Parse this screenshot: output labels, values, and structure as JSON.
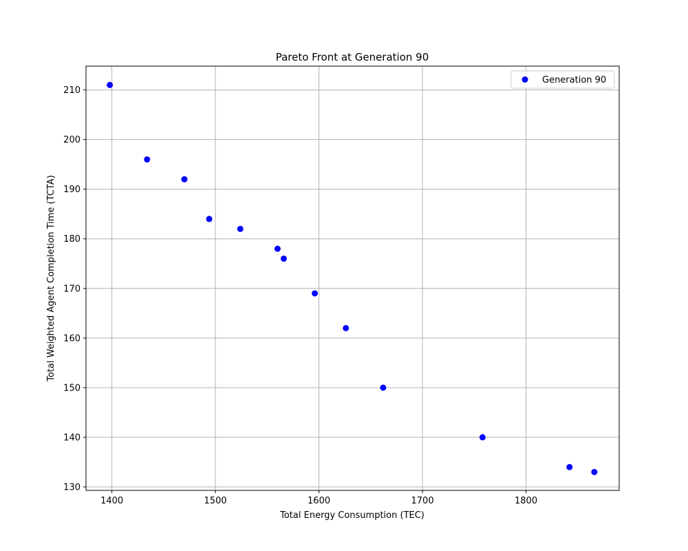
{
  "chart_data": {
    "type": "scatter",
    "title": "Pareto Front at Generation 90",
    "xlabel": "Total Energy Consumption (TEC)",
    "ylabel": "Total Weighted Agent Completion Time (TCTA)",
    "xlim": [
      1375,
      1890
    ],
    "ylim": [
      129.3,
      214.8
    ],
    "xticks": [
      1400,
      1500,
      1600,
      1700,
      1800
    ],
    "yticks": [
      130,
      140,
      150,
      160,
      170,
      180,
      190,
      200,
      210
    ],
    "grid": true,
    "legend_position": "top-right",
    "series": [
      {
        "name": "Generation 90",
        "color": "#0000ff",
        "points": [
          {
            "x": 1398,
            "y": 211
          },
          {
            "x": 1434,
            "y": 196
          },
          {
            "x": 1470,
            "y": 192
          },
          {
            "x": 1494,
            "y": 184
          },
          {
            "x": 1524,
            "y": 182
          },
          {
            "x": 1560,
            "y": 178
          },
          {
            "x": 1566,
            "y": 176
          },
          {
            "x": 1596,
            "y": 169
          },
          {
            "x": 1626,
            "y": 162
          },
          {
            "x": 1662,
            "y": 150
          },
          {
            "x": 1758,
            "y": 140
          },
          {
            "x": 1842,
            "y": 134
          },
          {
            "x": 1866,
            "y": 133
          }
        ]
      }
    ]
  }
}
